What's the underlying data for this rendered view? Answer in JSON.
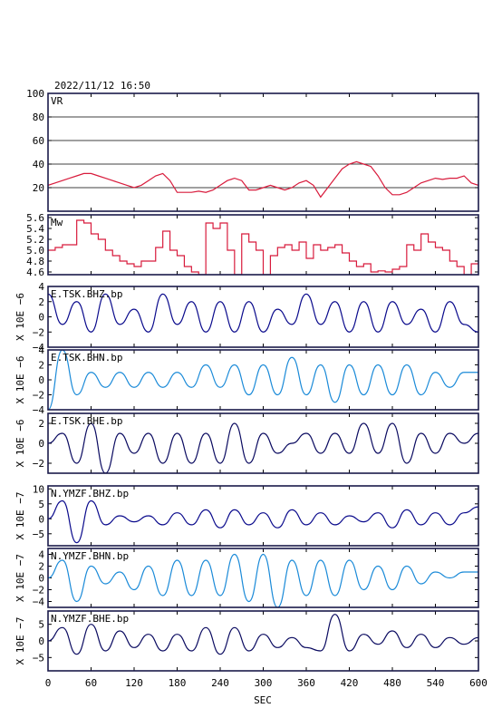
{
  "header": {
    "datetime": "2022/11/12  16:50"
  },
  "colors": {
    "frame": "#1a1a4a",
    "vr": "#d81b3c",
    "mw": "#d81b3c",
    "navy": "#0a0a8c",
    "blue": "#1a8ad8",
    "dark": "#0a0a60"
  },
  "chart_data": [
    {
      "type": "line",
      "id": "vr",
      "label": "VR",
      "yticks": [
        "100",
        "80",
        "60",
        "40",
        "20"
      ],
      "ylim": [
        0,
        100
      ],
      "grid": true,
      "x": [
        0,
        10,
        20,
        30,
        40,
        50,
        60,
        70,
        80,
        90,
        100,
        110,
        120,
        130,
        140,
        150,
        160,
        170,
        180,
        190,
        200,
        210,
        220,
        230,
        240,
        250,
        260,
        270,
        280,
        290,
        300,
        310,
        320,
        330,
        340,
        350,
        360,
        370,
        380,
        390,
        400,
        410,
        420,
        430,
        440,
        450,
        460,
        470,
        480,
        490,
        500,
        510,
        520,
        530,
        540,
        550,
        560,
        570,
        580,
        590,
        600
      ],
      "values": [
        22,
        24,
        26,
        28,
        30,
        32,
        32,
        30,
        28,
        26,
        24,
        22,
        20,
        22,
        26,
        30,
        32,
        26,
        16,
        16,
        16,
        17,
        16,
        18,
        22,
        26,
        28,
        26,
        18,
        18,
        20,
        22,
        20,
        18,
        20,
        24,
        26,
        22,
        12,
        20,
        28,
        36,
        40,
        42,
        40,
        38,
        30,
        20,
        14,
        14,
        16,
        20,
        24,
        26,
        28,
        27,
        28,
        28,
        30,
        24,
        22
      ]
    },
    {
      "type": "line",
      "id": "mw",
      "label": "Mw",
      "yticks": [
        "5.6",
        "5.4",
        "5.2",
        "5.0",
        "4.8",
        "4.6"
      ],
      "ylim": [
        4.55,
        5.65
      ],
      "x": [
        0,
        10,
        20,
        30,
        40,
        50,
        60,
        70,
        80,
        90,
        100,
        110,
        120,
        130,
        140,
        150,
        160,
        170,
        180,
        190,
        200,
        210,
        220,
        230,
        240,
        250,
        260,
        270,
        280,
        290,
        300,
        310,
        320,
        330,
        340,
        350,
        360,
        370,
        380,
        390,
        400,
        410,
        420,
        430,
        440,
        450,
        460,
        470,
        480,
        490,
        500,
        510,
        520,
        530,
        540,
        550,
        560,
        570,
        580,
        590,
        600
      ],
      "values": [
        5.0,
        5.05,
        5.1,
        5.1,
        5.55,
        5.5,
        5.3,
        5.2,
        5.0,
        4.9,
        4.8,
        4.75,
        4.7,
        4.8,
        4.8,
        5.05,
        5.35,
        5.0,
        4.9,
        4.7,
        4.6,
        4.55,
        5.5,
        5.4,
        5.5,
        5.0,
        4.55,
        5.3,
        5.15,
        5.0,
        4.55,
        4.9,
        5.05,
        5.1,
        5.0,
        5.15,
        4.85,
        5.1,
        5.0,
        5.05,
        5.1,
        4.95,
        4.8,
        4.7,
        4.75,
        4.6,
        4.62,
        4.6,
        4.65,
        4.7,
        5.1,
        5.0,
        5.3,
        5.15,
        5.05,
        5.0,
        4.8,
        4.7,
        4.55,
        4.75,
        4.8
      ]
    },
    {
      "type": "line",
      "id": "tsk-bhz",
      "label": "E.TSK.BHZ.bp",
      "ylabel": "X 10E −6",
      "ylim": [
        -4,
        4
      ],
      "yticks": [
        4,
        2,
        0,
        -2,
        -4
      ],
      "color": "navy",
      "x": [
        0,
        20,
        40,
        60,
        80,
        100,
        120,
        140,
        160,
        180,
        200,
        220,
        240,
        260,
        280,
        300,
        320,
        340,
        360,
        380,
        400,
        420,
        440,
        460,
        480,
        500,
        520,
        540,
        560,
        580,
        600
      ],
      "values": [
        3,
        -1,
        2,
        -2,
        3,
        -1,
        1,
        -2,
        3,
        -1,
        2,
        -2,
        2,
        -2,
        2,
        -2,
        1,
        -1,
        3,
        -1,
        2,
        -2,
        2,
        -2,
        2,
        -1,
        1,
        -2,
        2,
        -1,
        -2
      ]
    },
    {
      "type": "line",
      "id": "tsk-bhn",
      "label": "E.TSK.BHN.bp",
      "ylabel": "X 10E −6",
      "ylim": [
        -4,
        4
      ],
      "yticks": [
        4,
        2,
        0,
        -2,
        -4
      ],
      "color": "blue",
      "x": [
        0,
        20,
        40,
        60,
        80,
        100,
        120,
        140,
        160,
        180,
        200,
        220,
        240,
        260,
        280,
        300,
        320,
        340,
        360,
        380,
        400,
        420,
        440,
        460,
        480,
        500,
        520,
        540,
        560,
        580,
        600
      ],
      "values": [
        -4,
        4,
        -2,
        1,
        -1,
        1,
        -1,
        1,
        -1,
        1,
        -1,
        2,
        -1,
        2,
        -2,
        2,
        -2,
        3,
        -2,
        2,
        -3,
        2,
        -2,
        2,
        -2,
        2,
        -2,
        1,
        -1,
        1,
        1
      ]
    },
    {
      "type": "line",
      "id": "tsk-bhe",
      "label": "E.TSK.BHE.bp",
      "ylabel": "X 10E −6",
      "ylim": [
        -3,
        3
      ],
      "yticks": [
        2,
        0,
        -2
      ],
      "color": "dark",
      "x": [
        0,
        20,
        40,
        60,
        80,
        100,
        120,
        140,
        160,
        180,
        200,
        220,
        240,
        260,
        280,
        300,
        320,
        340,
        360,
        380,
        400,
        420,
        440,
        460,
        480,
        500,
        520,
        540,
        560,
        580,
        600
      ],
      "values": [
        0,
        1,
        -2,
        2,
        -3,
        1,
        -1,
        1,
        -2,
        1,
        -2,
        1,
        -2,
        2,
        -2,
        1,
        -1,
        0,
        1,
        -1,
        1,
        -1,
        2,
        -1,
        2,
        -2,
        1,
        -1,
        1,
        0,
        1
      ]
    },
    {
      "type": "line",
      "id": "ymzf-bhz",
      "label": "N.YMZF.BHZ.bp",
      "ylabel": "X 10E −7",
      "ylim": [
        -9,
        11
      ],
      "yticks": [
        10,
        5,
        0,
        -5
      ],
      "color": "navy",
      "x": [
        0,
        20,
        40,
        60,
        80,
        100,
        120,
        140,
        160,
        180,
        200,
        220,
        240,
        260,
        280,
        300,
        320,
        340,
        360,
        380,
        400,
        420,
        440,
        460,
        480,
        500,
        520,
        540,
        560,
        580,
        600
      ],
      "values": [
        0,
        6,
        -8,
        6,
        -2,
        1,
        -1,
        1,
        -2,
        2,
        -2,
        3,
        -3,
        3,
        -2,
        2,
        -3,
        3,
        -2,
        2,
        -2,
        1,
        -1,
        2,
        -3,
        3,
        -2,
        2,
        -2,
        2,
        4
      ]
    },
    {
      "type": "line",
      "id": "ymzf-bhn",
      "label": "N.YMZF.BHN.bp",
      "ylabel": "X 10E −7",
      "ylim": [
        -5,
        5
      ],
      "yticks": [
        4,
        2,
        0,
        -2,
        -4
      ],
      "color": "blue",
      "x": [
        0,
        20,
        40,
        60,
        80,
        100,
        120,
        140,
        160,
        180,
        200,
        220,
        240,
        260,
        280,
        300,
        320,
        340,
        360,
        380,
        400,
        420,
        440,
        460,
        480,
        500,
        520,
        540,
        560,
        580,
        600
      ],
      "values": [
        0,
        3,
        -4,
        2,
        -1,
        1,
        -2,
        2,
        -3,
        3,
        -3,
        3,
        -3,
        4,
        -4,
        4,
        -5,
        3,
        -3,
        3,
        -3,
        3,
        -2,
        2,
        -2,
        2,
        -1,
        1,
        0,
        1,
        1
      ]
    },
    {
      "type": "line",
      "id": "ymzf-bhe",
      "label": "N.YMZF.BHE.bp",
      "ylabel": "X 10E −7",
      "ylim": [
        -9,
        9
      ],
      "yticks": [
        5,
        0,
        -5
      ],
      "color": "dark",
      "x": [
        0,
        20,
        40,
        60,
        80,
        100,
        120,
        140,
        160,
        180,
        200,
        220,
        240,
        260,
        280,
        300,
        320,
        340,
        360,
        380,
        400,
        420,
        440,
        460,
        480,
        500,
        520,
        540,
        560,
        580,
        600
      ],
      "values": [
        0,
        4,
        -4,
        5,
        -3,
        3,
        -2,
        2,
        -3,
        2,
        -3,
        4,
        -4,
        4,
        -3,
        2,
        -2,
        1,
        -2,
        -3,
        8,
        -3,
        2,
        -1,
        3,
        -2,
        2,
        -2,
        1,
        -1,
        1
      ]
    }
  ],
  "xaxis": {
    "label": "SEC",
    "xlim": [
      0,
      600
    ],
    "ticks": [
      "0",
      "60",
      "120",
      "180",
      "240",
      "300",
      "360",
      "420",
      "480",
      "540",
      "600"
    ]
  }
}
